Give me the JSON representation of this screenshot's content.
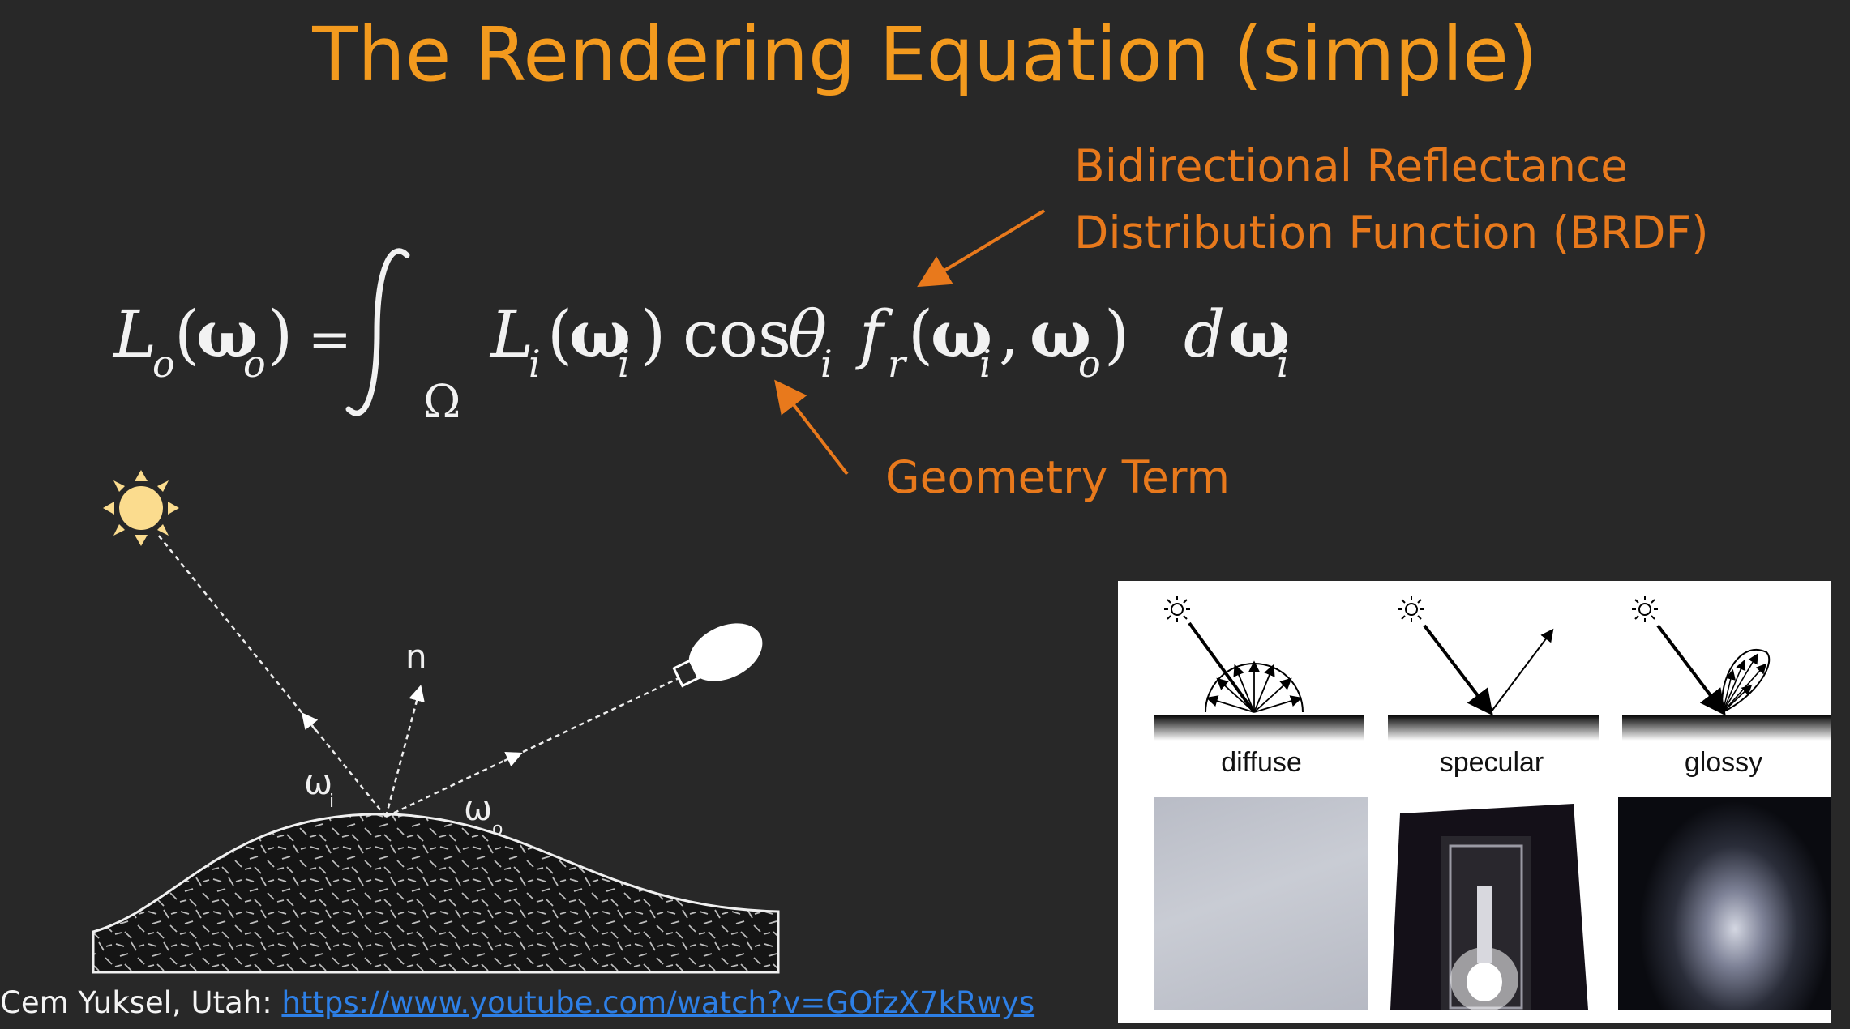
{
  "slide": {
    "title": "The Rendering Equation (simple)",
    "annotations": {
      "brdf_line1": "Bidirectional Reflectance",
      "brdf_line2": "Distribution Function (BRDF)",
      "geometry": "Geometry Term"
    },
    "equation": {
      "lhs_L": "L",
      "lhs_sub": "o",
      "lhs_omega_sub": "o",
      "equals": "=",
      "domain": "Ω",
      "integrand_L": "L",
      "integrand_sub": "i",
      "cos": "cos",
      "theta": "θ",
      "theta_sub": "i",
      "f": "f",
      "f_sub": "r",
      "omega_i_sub": "i",
      "omega_o_sub": "o",
      "d": "d",
      "d_omega_sub": "i",
      "omega": "ω"
    },
    "diagram": {
      "normal_label": "n",
      "omega_in_label": "ω",
      "omega_in_sub": "i",
      "omega_out_label": "ω",
      "omega_out_sub": "o",
      "light_icon": "sun-icon",
      "camera_icon": "camera-icon"
    },
    "brdf_panel": {
      "labels": [
        "diffuse",
        "specular",
        "glossy"
      ]
    },
    "credit": {
      "text": "Cem Yuksel, Utah: ",
      "link": "https://www.youtube.com/watch?v=GOfzX7kRwys"
    },
    "colors": {
      "background": "#282828",
      "title": "#f39a1e",
      "annotation": "#e8791c",
      "link": "#2d7fe6"
    }
  }
}
